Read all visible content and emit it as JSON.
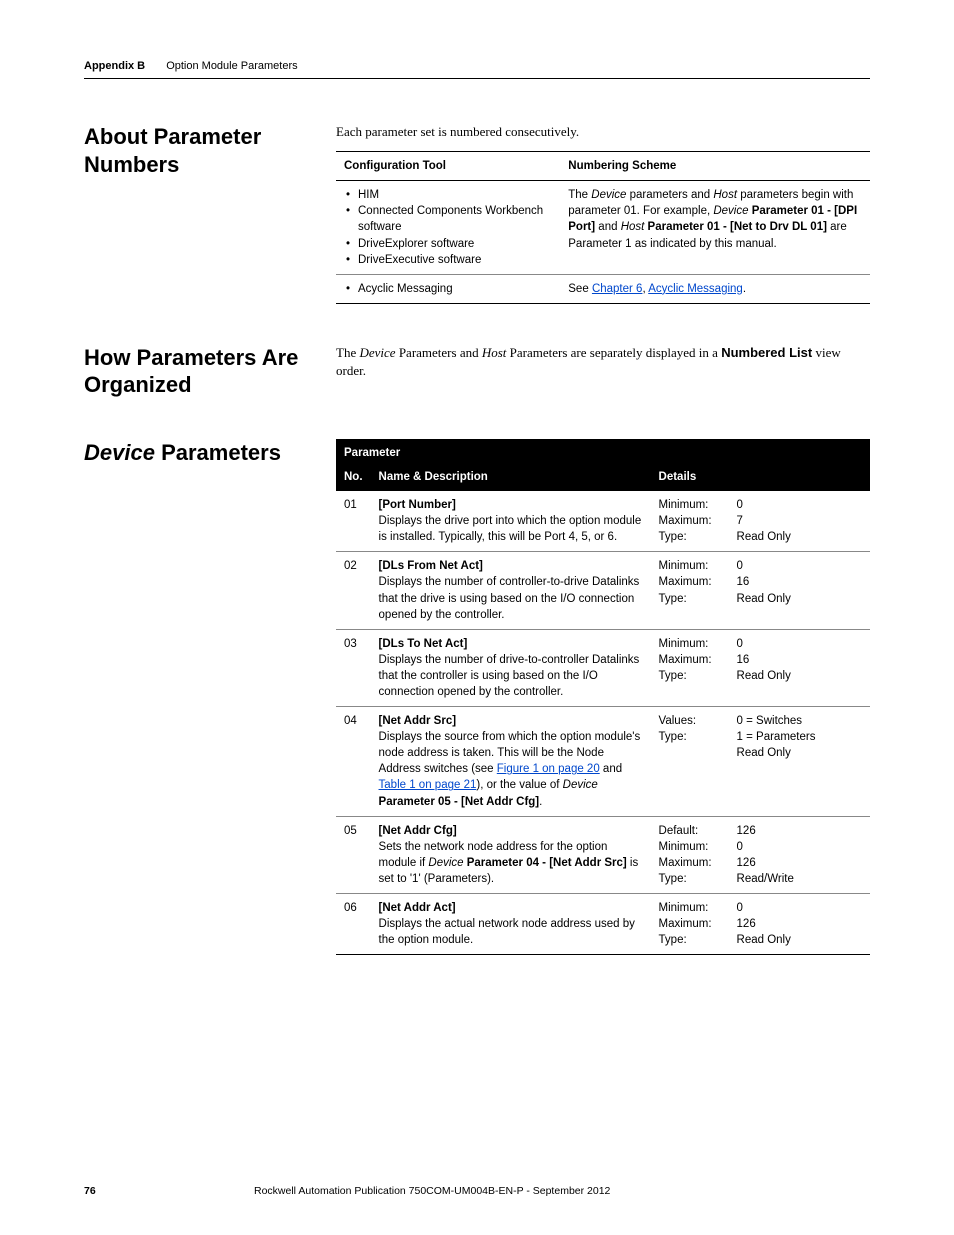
{
  "header": {
    "appendix": "Appendix B",
    "title": "Option Module Parameters"
  },
  "sections": {
    "about": {
      "heading": "About Parameter Numbers",
      "intro": "Each parameter set is numbered consecutively.",
      "table": {
        "col1": "Configuration Tool",
        "col2": "Numbering Scheme",
        "row1": {
          "tools": [
            "HIM",
            "Connected Components Workbench software",
            "DriveExplorer software",
            "DriveExecutive software"
          ],
          "scheme_pre": "The ",
          "scheme_i1": "Device",
          "scheme_mid1": " parameters and ",
          "scheme_i2": "Host",
          "scheme_mid2": " parameters begin with parameter 01. For example, ",
          "scheme_i3": "Device",
          "scheme_b1": " Parameter 01 - [DPI Port]",
          "scheme_mid3": " and ",
          "scheme_i4": "Host",
          "scheme_b2": " Parameter 01 - [Net to Drv DL 01]",
          "scheme_end": " are Parameter 1 as indicated by this manual."
        },
        "row2": {
          "tool": "Acyclic Messaging",
          "scheme_pre": "See ",
          "link1": "Chapter 6",
          "mid": ", ",
          "link2": "Acyclic Messaging",
          "end": "."
        }
      }
    },
    "organized": {
      "heading": "How Parameters Are Organized",
      "body_pre": "The ",
      "body_i1": "Device",
      "body_mid1": " Parameters and ",
      "body_i2": "Host",
      "body_mid2": " Parameters are separately displayed in a ",
      "body_b": "Numbered List",
      "body_end": " view order."
    },
    "device": {
      "heading_i": "Device",
      "heading_rest": " Parameters",
      "th_param": "Parameter",
      "th_no": "No.",
      "th_name": "Name & Description",
      "th_details": "Details",
      "rows": [
        {
          "no": "01",
          "name": "[Port Number]",
          "desc": "Displays the drive port into which the option module is installed. Typically, this will be Port 4, 5, or 6.",
          "labels": [
            "Minimum:",
            "Maximum:",
            "Type:"
          ],
          "vals": [
            "0",
            "7",
            "Read Only"
          ]
        },
        {
          "no": "02",
          "name": "[DLs From Net Act]",
          "desc": "Displays the number of controller-to-drive Datalinks that the drive is using based on the I/O connection opened by the controller.",
          "labels": [
            "Minimum:",
            "Maximum:",
            "Type:"
          ],
          "vals": [
            "0",
            "16",
            "Read Only"
          ]
        },
        {
          "no": "03",
          "name": "[DLs To Net Act]",
          "desc": "Displays the number of drive-to-controller Datalinks that the controller is using based on the I/O connection opened by the controller.",
          "labels": [
            "Minimum:",
            "Maximum:",
            "Type:"
          ],
          "vals": [
            "0",
            "16",
            "Read Only"
          ]
        },
        {
          "no": "04",
          "name": "[Net Addr Src]",
          "desc_pre": "Displays the source from which the option module's node address is taken. This will be the Node Address switches (see ",
          "link1": "Figure 1 on page 20",
          "desc_mid": " and ",
          "link2": "Table 1 on page 21",
          "desc_post": "), or the value of ",
          "desc_i": "Device",
          "desc_b": " Parameter 05 - [Net Addr Cfg]",
          "desc_end": ".",
          "labels": [
            "Values:",
            "",
            "Type:"
          ],
          "vals": [
            "0 = Switches",
            "1 = Parameters",
            "Read Only"
          ]
        },
        {
          "no": "05",
          "name": "[Net Addr Cfg]",
          "desc_pre": "Sets the network node address for the option module if ",
          "desc_i": "Device",
          "desc_b": " Parameter 04 - [Net Addr Src]",
          "desc_end": " is set to '1' (Parameters).",
          "labels": [
            "Default:",
            "Minimum:",
            "Maximum:",
            "Type:"
          ],
          "vals": [
            "126",
            "0",
            "126",
            "Read/Write"
          ]
        },
        {
          "no": "06",
          "name": "[Net Addr Act]",
          "desc": "Displays the actual network node address used by the option module.",
          "labels": [
            "Minimum:",
            "Maximum:",
            "Type:"
          ],
          "vals": [
            "0",
            "126",
            "Read Only"
          ]
        }
      ]
    }
  },
  "footer": {
    "page": "76",
    "pub": "Rockwell Automation Publication 750COM-UM004B-EN-P - September 2012"
  }
}
